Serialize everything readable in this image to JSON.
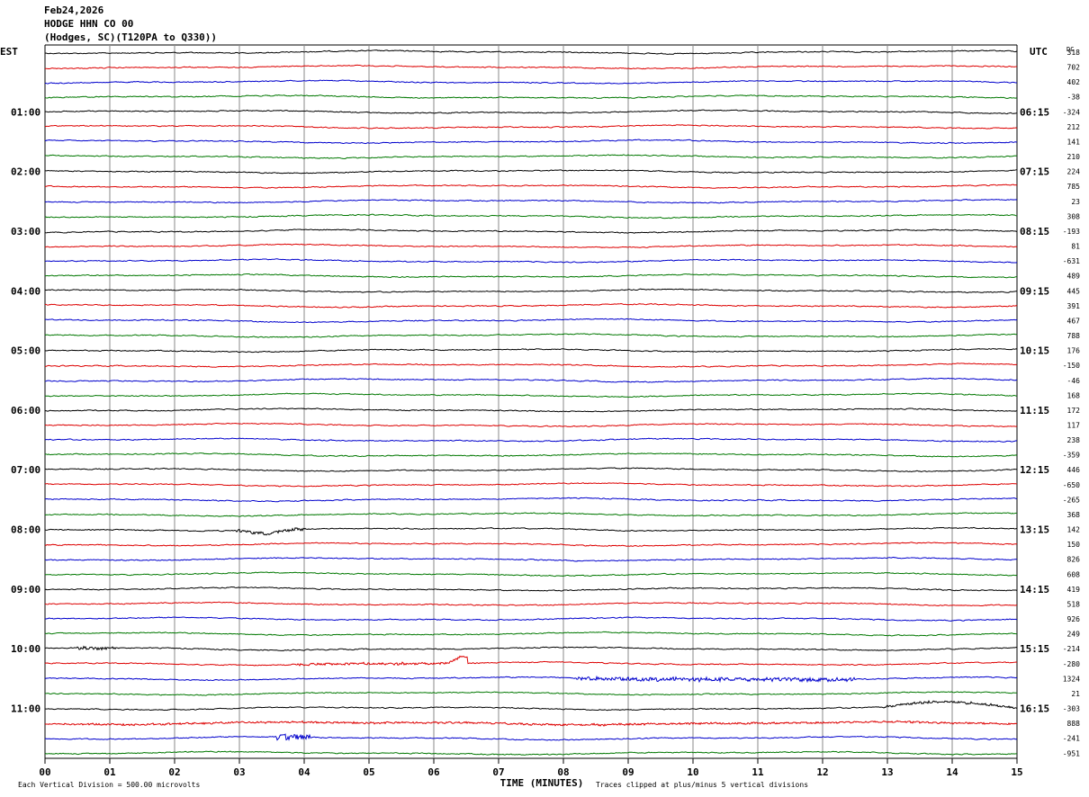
{
  "header": {
    "date": "Feb24,2026",
    "station": "HODGE HHN CO 00",
    "location": "(Hodges, SC)(T120PA to Q330))"
  },
  "chart_data": {
    "type": "line",
    "title": "",
    "left_axis_label": "EST",
    "right_axis_label": "UTC",
    "dc_label": "DC",
    "xlabel": "TIME (MINUTES)",
    "xlim": [
      0,
      15
    ],
    "x_ticks": [
      "00",
      "01",
      "02",
      "03",
      "04",
      "05",
      "06",
      "07",
      "08",
      "09",
      "10",
      "11",
      "12",
      "13",
      "14",
      "15"
    ],
    "left_hour_labels": [
      "01:00",
      "02:00",
      "03:00",
      "04:00",
      "05:00",
      "06:00",
      "07:00",
      "08:00",
      "09:00",
      "10:00",
      "11:00"
    ],
    "right_hour_labels": [
      "06:15",
      "07:15",
      "08:15",
      "09:15",
      "10:15",
      "11:15",
      "12:15",
      "13:15",
      "14:15",
      "15:15",
      "16:15"
    ],
    "dc_offsets": [
      "318",
      "702",
      "402",
      "-38",
      "-324",
      "212",
      "141",
      "210",
      "224",
      "785",
      "23",
      "308",
      "-193",
      "81",
      "-631",
      "489",
      "445",
      "391",
      "467",
      "788",
      "176",
      "-150",
      "-46",
      "168",
      "172",
      "117",
      "238",
      "-359",
      "446",
      "-650",
      "-265",
      "368",
      "142",
      "150",
      "826",
      "608",
      "419",
      "518",
      "926",
      "249",
      "-214",
      "-280",
      "1324",
      "21",
      "-303",
      "888",
      "-241",
      "-951"
    ],
    "trace_colors": [
      "#000000",
      "#dd0000",
      "#0000cc",
      "#007700"
    ],
    "grid": true,
    "footer_left": "Each Vertical Division =  500.00 microvolts",
    "footer_right": "Traces clipped at plus/minus 5 vertical divisions"
  }
}
